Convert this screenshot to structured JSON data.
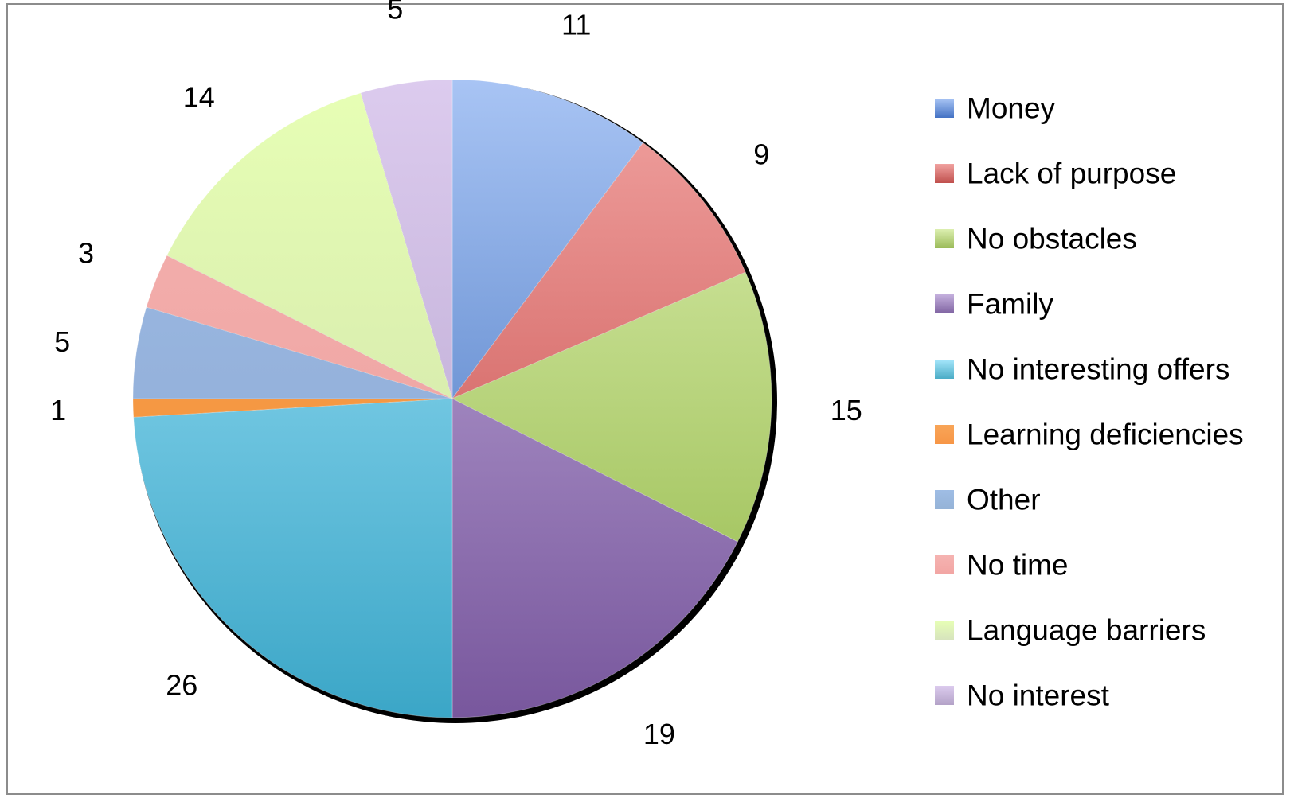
{
  "chart_data": {
    "type": "pie",
    "title": "",
    "legend_position": "right",
    "slices": [
      {
        "label": "Money",
        "value": 11,
        "color": "#4472c4",
        "light": "#a8c4f4",
        "dark": "#3a6ab8"
      },
      {
        "label": "Lack of purpose",
        "value": 9,
        "color": "#c0504d",
        "light": "#f1a3a1",
        "dark": "#c24442"
      },
      {
        "label": "No obstacles",
        "value": 15,
        "color": "#9bbb59",
        "light": "#dcefb0",
        "dark": "#93b848"
      },
      {
        "label": "Family",
        "value": 19,
        "color": "#8064a2",
        "light": "#c4b0dd",
        "dark": "#78579d"
      },
      {
        "label": "No interesting offers",
        "value": 26,
        "color": "#4bacc6",
        "light": "#a5e6fb",
        "dark": "#3ba6c7"
      },
      {
        "label": "Learning deficiencies",
        "value": 1,
        "color": "#f79646",
        "light": "#f8a558",
        "dark": "#f28c2f"
      },
      {
        "label": "Other",
        "value": 5,
        "color": "#95b3d7",
        "light": "#9fbde5",
        "dark": "#8aa6d2"
      },
      {
        "label": "No time",
        "value": 3,
        "color": "#f2a5a3",
        "light": "#f5b3b1",
        "dark": "#eb9c9a"
      },
      {
        "label": "Language barriers",
        "value": 14,
        "color": "#d7e4bd",
        "light": "#e7ffb5",
        "dark": "#ccdca8"
      },
      {
        "label": "No interest",
        "value": 5,
        "color": "#b3a2c7",
        "light": "#dccbee",
        "dark": "#b3a1cb"
      }
    ]
  }
}
